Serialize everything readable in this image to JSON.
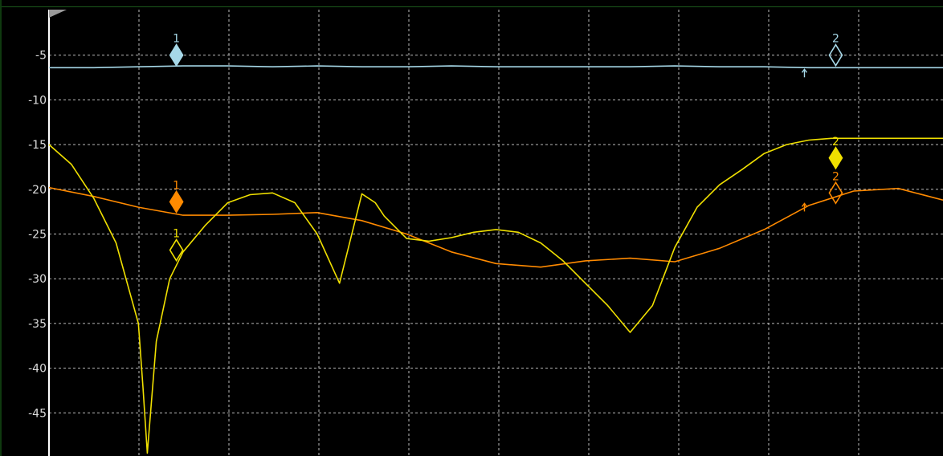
{
  "chart_data": {
    "type": "line",
    "x": [
      0,
      1,
      2,
      3,
      4,
      5,
      6,
      7,
      8,
      9,
      10,
      11,
      12,
      13,
      14,
      15,
      16,
      17,
      18,
      19,
      20
    ],
    "ylim": [
      -50,
      0
    ],
    "yticks": [
      -5,
      -10,
      -15,
      -20,
      -25,
      -30,
      -35,
      -40,
      -45
    ],
    "ytick_labels": [
      "-5",
      "-10",
      "-15",
      "-20",
      "-25",
      "-30",
      "-35",
      "-40",
      "-45"
    ],
    "grid": true,
    "series": [
      {
        "color": "#a6d8e8",
        "x": [
          0,
          1,
          2,
          3,
          4,
          5,
          6,
          7,
          8,
          9,
          10,
          11,
          12,
          13,
          14,
          15,
          16,
          17,
          18,
          19,
          20
        ],
        "y": [
          -6.4,
          -6.4,
          -6.3,
          -6.2,
          -6.2,
          -6.3,
          -6.2,
          -6.3,
          -6.3,
          -6.2,
          -6.3,
          -6.3,
          -6.3,
          -6.3,
          -6.2,
          -6.3,
          -6.3,
          -6.4,
          -6.4,
          -6.4,
          -6.4
        ]
      },
      {
        "color": "#ff8a00",
        "x": [
          0,
          1,
          2,
          3,
          4,
          5,
          6,
          7,
          8,
          9,
          10,
          11,
          12,
          13,
          14,
          15,
          16,
          17,
          18,
          19,
          20
        ],
        "y": [
          -19.8,
          -20.8,
          -22,
          -22.9,
          -22.9,
          -22.8,
          -22.6,
          -23.5,
          -25,
          -27,
          -28.3,
          -28.7,
          -28,
          -27.7,
          -28.1,
          -26.6,
          -24.5,
          -21.8,
          -20.2,
          -19.9,
          -21.2
        ]
      },
      {
        "color": "#f0e000",
        "x": [
          0,
          0.5,
          1,
          1.5,
          2,
          2.1,
          2.2,
          2.4,
          2.7,
          3,
          3.5,
          4,
          4.5,
          5,
          5.5,
          6,
          6.5,
          7,
          7.3,
          7.5,
          8,
          8.5,
          9,
          9.5,
          10,
          10.5,
          11,
          11.5,
          12,
          12.5,
          13,
          13.5,
          14,
          14.5,
          15,
          15.5,
          16,
          16.5,
          17,
          17.5,
          18,
          18.5,
          19,
          19.5,
          20
        ],
        "y": [
          -15,
          -17.2,
          -21,
          -26,
          -35,
          -42,
          -49.5,
          -37,
          -30,
          -27,
          -24,
          -21.5,
          -20.6,
          -20.4,
          -21.5,
          -25,
          -30.5,
          -20.5,
          -21.5,
          -23,
          -25.5,
          -25.8,
          -25.4,
          -24.8,
          -24.5,
          -24.8,
          -26,
          -28,
          -30.5,
          -33,
          -36,
          -33,
          -26.5,
          -22,
          -19.5,
          -17.8,
          -16,
          -15,
          -14.5,
          -14.3,
          -14.3,
          -14.3,
          -14.3,
          -14.3,
          -14.3
        ]
      }
    ],
    "markers": [
      {
        "label": "1",
        "series": 0,
        "x": 2.85,
        "y": -5,
        "style": "filled"
      },
      {
        "label": "2",
        "series": 0,
        "x": 17.6,
        "y": -5,
        "style": "open"
      },
      {
        "label": "1",
        "series": 1,
        "x": 2.85,
        "y": -21.4,
        "style": "filled"
      },
      {
        "label": "2",
        "series": 1,
        "x": 17.6,
        "y": -20.4,
        "style": "open"
      },
      {
        "label": "1",
        "series": 2,
        "x": 2.85,
        "y": -26.8,
        "style": "open"
      },
      {
        "label": "2",
        "series": 2,
        "x": 17.6,
        "y": -16.5,
        "style": "filled"
      }
    ],
    "reference_arrows": [
      {
        "series": 0,
        "x": 16.9,
        "y": -6.4
      },
      {
        "series": 1,
        "x": 16.9,
        "y": -21.4
      }
    ],
    "colors": {
      "background": "#000000",
      "grid": "#dcdcdc",
      "axis": "#ffffff",
      "frame": "#1c5a1c"
    }
  }
}
